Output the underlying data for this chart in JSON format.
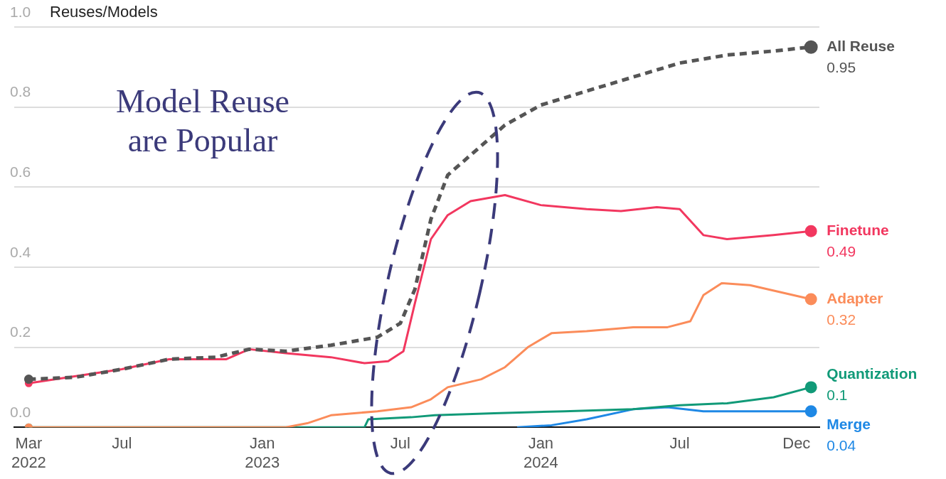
{
  "chart_data": {
    "type": "line",
    "ylabel": "Reuses/Models",
    "annotations": [
      "Model Reuse\nare Popular"
    ],
    "xlim": [
      "2022-02-10",
      "2024-12-31"
    ],
    "xticks": [
      {
        "value": "2022-03-01",
        "label": "Mar\n2022"
      },
      {
        "value": "2022-07-01",
        "label": "Jul"
      },
      {
        "value": "2023-01-01",
        "label": "Jan\n2023"
      },
      {
        "value": "2023-07-01",
        "label": "Jul"
      },
      {
        "value": "2024-01-01",
        "label": "Jan\n2024"
      },
      {
        "value": "2024-07-01",
        "label": "Jul"
      },
      {
        "value": "2024-12-01",
        "label": "Dec"
      }
    ],
    "ylim": [
      0,
      1.0
    ],
    "yticks": [
      {
        "value": 0,
        "label": "0.0"
      },
      {
        "value": 0.2,
        "label": "0.2"
      },
      {
        "value": 0.4,
        "label": "0.4"
      },
      {
        "value": 0.6,
        "label": "0.6"
      },
      {
        "value": 0.8,
        "label": "0.8"
      },
      {
        "value": 1.0,
        "label": "1.0"
      }
    ],
    "grid": "y",
    "legend": false,
    "series": [
      {
        "name": "All Reuse",
        "color": "#555555",
        "line_style": "dashed",
        "x": [
          "2022-03-01",
          "2022-05-01",
          "2022-07-01",
          "2022-09-01",
          "2022-11-01",
          "2022-12-15",
          "2023-02-01",
          "2023-04-01",
          "2023-06-01",
          "2023-07-01",
          "2023-07-20",
          "2023-08-10",
          "2023-09-01",
          "2023-10-01",
          "2023-11-15",
          "2024-01-01",
          "2024-03-01",
          "2024-05-01",
          "2024-07-01",
          "2024-09-01",
          "2024-11-01",
          "2024-12-20"
        ],
        "values": [
          0.12,
          0.125,
          0.145,
          0.17,
          0.175,
          0.195,
          0.19,
          0.205,
          0.225,
          0.26,
          0.345,
          0.52,
          0.63,
          0.68,
          0.755,
          0.805,
          0.84,
          0.875,
          0.91,
          0.93,
          0.94,
          0.95
        ],
        "value_labels": [
          null,
          null,
          null,
          null,
          null,
          null,
          null,
          null,
          null,
          null,
          null,
          null,
          null,
          null,
          null,
          null,
          null,
          null,
          null,
          null,
          null,
          "0.95"
        ]
      },
      {
        "name": "Finetune",
        "color": "#f2375f",
        "line_style": "solid",
        "x": [
          "2022-03-01",
          "2022-07-01",
          "2022-09-01",
          "2022-11-15",
          "2022-12-15",
          "2023-02-01",
          "2023-04-01",
          "2023-05-15",
          "2023-06-15",
          "2023-07-05",
          "2023-07-20",
          "2023-08-10",
          "2023-09-01",
          "2023-10-01",
          "2023-11-15",
          "2024-01-01",
          "2024-03-01",
          "2024-04-15",
          "2024-06-01",
          "2024-07-01",
          "2024-08-01",
          "2024-09-01",
          "2024-11-01",
          "2024-12-20"
        ],
        "values": [
          0.11,
          0.145,
          0.17,
          0.17,
          0.195,
          0.185,
          0.175,
          0.16,
          0.165,
          0.19,
          0.31,
          0.47,
          0.53,
          0.565,
          0.58,
          0.555,
          0.545,
          0.54,
          0.55,
          0.545,
          0.48,
          0.47,
          0.48,
          0.49
        ],
        "value_labels": [
          null,
          null,
          null,
          null,
          null,
          null,
          null,
          null,
          null,
          null,
          null,
          null,
          null,
          null,
          null,
          null,
          null,
          null,
          null,
          null,
          null,
          null,
          null,
          "0.49"
        ]
      },
      {
        "name": "Adapter",
        "color": "#fb8c5a",
        "line_style": "solid",
        "x": [
          "2022-03-01",
          "2023-02-01",
          "2023-03-01",
          "2023-04-01",
          "2023-06-01",
          "2023-07-15",
          "2023-08-10",
          "2023-09-01",
          "2023-10-15",
          "2023-11-15",
          "2023-12-15",
          "2024-01-15",
          "2024-03-01",
          "2024-05-01",
          "2024-06-15",
          "2024-07-15",
          "2024-08-01",
          "2024-08-25",
          "2024-10-01",
          "2024-12-20"
        ],
        "values": [
          0,
          0,
          0.01,
          0.03,
          0.04,
          0.05,
          0.07,
          0.1,
          0.12,
          0.15,
          0.2,
          0.235,
          0.24,
          0.25,
          0.25,
          0.265,
          0.33,
          0.36,
          0.355,
          0.32
        ],
        "value_labels": [
          null,
          null,
          null,
          null,
          null,
          null,
          null,
          null,
          null,
          null,
          null,
          null,
          null,
          null,
          null,
          null,
          null,
          null,
          null,
          "0.32"
        ]
      },
      {
        "name": "Quantization",
        "color": "#119a78",
        "line_style": "solid",
        "x": [
          "2022-03-01",
          "2023-05-15",
          "2023-05-20",
          "2023-07-15",
          "2023-08-15",
          "2023-11-01",
          "2024-02-01",
          "2024-05-01",
          "2024-07-01",
          "2024-09-01",
          "2024-11-01",
          "2024-12-20"
        ],
        "values": [
          0,
          0,
          0.02,
          0.025,
          0.03,
          0.035,
          0.04,
          0.045,
          0.055,
          0.06,
          0.075,
          0.1
        ],
        "value_labels": [
          null,
          null,
          null,
          null,
          null,
          null,
          null,
          null,
          null,
          null,
          null,
          "0.1"
        ]
      },
      {
        "name": "Merge",
        "color": "#1e88e5",
        "line_style": "solid",
        "x": [
          "2023-12-01",
          "2024-01-15",
          "2024-03-01",
          "2024-05-01",
          "2024-06-15",
          "2024-08-01",
          "2024-12-20"
        ],
        "values": [
          0,
          0.005,
          0.02,
          0.045,
          0.05,
          0.04,
          0.04
        ],
        "value_labels": [
          null,
          null,
          null,
          null,
          null,
          null,
          "0.04"
        ]
      }
    ]
  }
}
